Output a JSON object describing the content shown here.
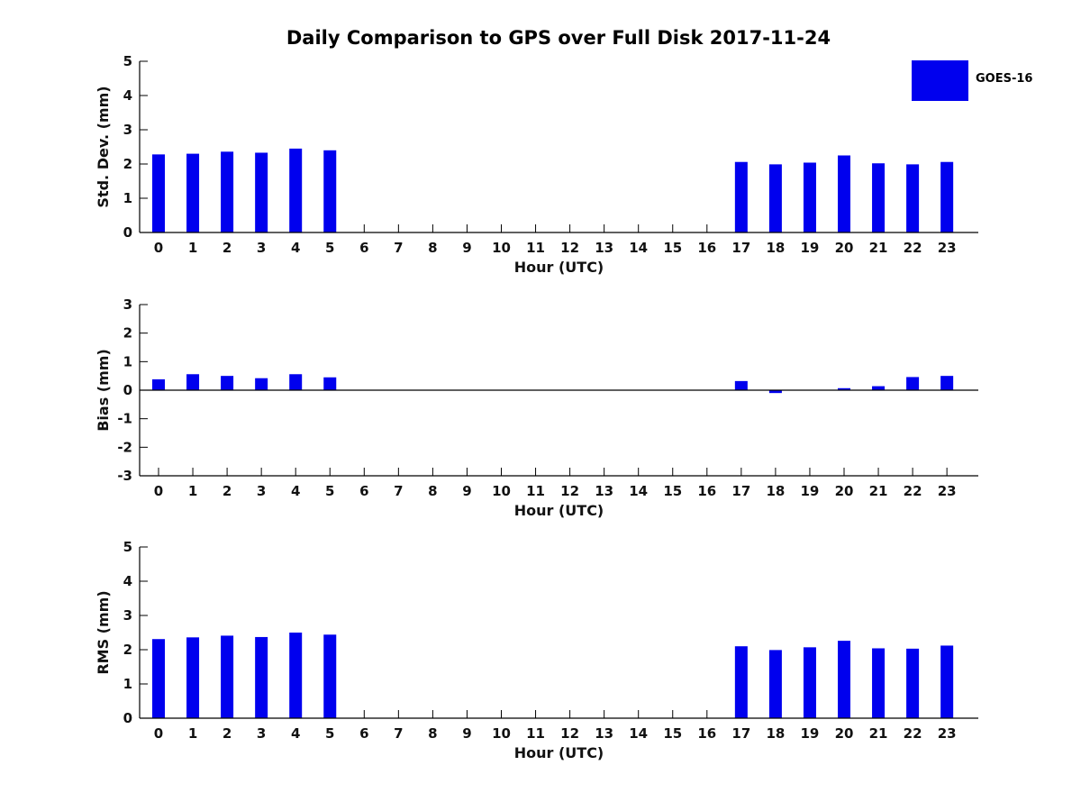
{
  "chart_data": {
    "type": "bar",
    "title": "Daily Comparison to GPS over Full Disk 2017-11-24",
    "xlabel": "Hour (UTC)",
    "categories": [
      "0",
      "1",
      "2",
      "3",
      "4",
      "5",
      "6",
      "7",
      "8",
      "9",
      "10",
      "11",
      "12",
      "13",
      "14",
      "15",
      "16",
      "17",
      "18",
      "19",
      "20",
      "21",
      "22",
      "23"
    ],
    "bar_color": "#0000ee",
    "background_color": "#ffffff",
    "legend": [
      {
        "name": "GOES-16",
        "color": "#0000ee",
        "position": "top-right"
      }
    ],
    "grid": "off",
    "subplots": [
      {
        "id": "stddev",
        "ylabel": "Std. Dev. (mm)",
        "ylim": [
          0,
          5
        ],
        "yticks": [
          0,
          1,
          2,
          3,
          4,
          5
        ],
        "values": [
          2.28,
          2.3,
          2.36,
          2.33,
          2.45,
          2.4,
          null,
          null,
          null,
          null,
          null,
          null,
          null,
          null,
          null,
          null,
          null,
          2.06,
          1.99,
          2.04,
          2.25,
          2.02,
          1.99,
          2.06
        ]
      },
      {
        "id": "bias",
        "ylabel": "Bias (mm)",
        "ylim": [
          -3,
          3
        ],
        "yticks": [
          -3,
          -2,
          -1,
          0,
          1,
          2,
          3
        ],
        "values": [
          0.38,
          0.56,
          0.5,
          0.42,
          0.56,
          0.45,
          null,
          null,
          null,
          null,
          null,
          null,
          null,
          null,
          null,
          null,
          null,
          0.32,
          -0.1,
          0.01,
          0.07,
          0.14,
          0.46,
          0.5
        ]
      },
      {
        "id": "rms",
        "ylabel": "RMS (mm)",
        "ylim": [
          0,
          5
        ],
        "yticks": [
          0,
          1,
          2,
          3,
          4,
          5
        ],
        "values": [
          2.31,
          2.36,
          2.41,
          2.37,
          2.5,
          2.44,
          null,
          null,
          null,
          null,
          null,
          null,
          null,
          null,
          null,
          null,
          null,
          2.1,
          1.99,
          2.07,
          2.26,
          2.04,
          2.03,
          2.12
        ]
      }
    ]
  }
}
